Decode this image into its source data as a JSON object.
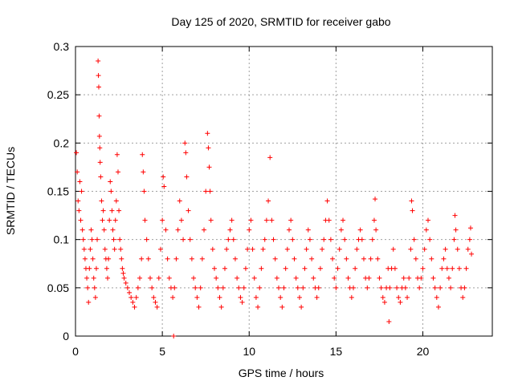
{
  "chart_data": {
    "type": "scatter",
    "title": "Day 125 of 2020, SRMTID for receiver gabo",
    "xlabel": "GPS time / hours",
    "ylabel": "SRMTID / TECUs",
    "xlim": [
      0,
      24
    ],
    "ylim": [
      0,
      0.3
    ],
    "x_ticks": [
      0,
      5,
      10,
      15,
      20
    ],
    "x_tick_labels": [
      "0",
      "5",
      "10",
      "15",
      "20"
    ],
    "y_ticks": [
      0,
      0.05,
      0.1,
      0.15,
      0.2,
      0.25,
      0.3
    ],
    "y_tick_labels": [
      "0",
      "0.05",
      "0.1",
      "0.15",
      "0.2",
      "0.25",
      "0.3"
    ],
    "grid": true,
    "marker": "plus",
    "color": "#ff0000",
    "series": [
      {
        "name": "SRMTID",
        "points": [
          [
            0.05,
            0.19
          ],
          [
            0.1,
            0.17
          ],
          [
            0.15,
            0.14
          ],
          [
            0.2,
            0.13
          ],
          [
            0.25,
            0.16
          ],
          [
            0.3,
            0.12
          ],
          [
            0.35,
            0.15
          ],
          [
            0.4,
            0.11
          ],
          [
            0.45,
            0.1
          ],
          [
            0.5,
            0.09
          ],
          [
            0.55,
            0.08
          ],
          [
            0.6,
            0.07
          ],
          [
            0.65,
            0.06
          ],
          [
            0.7,
            0.05
          ],
          [
            0.75,
            0.035
          ],
          [
            0.8,
            0.07
          ],
          [
            0.85,
            0.09
          ],
          [
            0.9,
            0.11
          ],
          [
            0.95,
            0.1
          ],
          [
            1.0,
            0.08
          ],
          [
            1.05,
            0.06
          ],
          [
            1.1,
            0.05
          ],
          [
            1.15,
            0.04
          ],
          [
            1.2,
            0.07
          ],
          [
            1.25,
            0.1
          ],
          [
            1.3,
            0.285
          ],
          [
            1.32,
            0.27
          ],
          [
            1.34,
            0.258
          ],
          [
            1.36,
            0.228
          ],
          [
            1.38,
            0.207
          ],
          [
            1.4,
            0.195
          ],
          [
            1.42,
            0.18
          ],
          [
            1.45,
            0.165
          ],
          [
            1.5,
            0.14
          ],
          [
            1.55,
            0.12
          ],
          [
            1.6,
            0.13
          ],
          [
            1.65,
            0.11
          ],
          [
            1.7,
            0.09
          ],
          [
            1.75,
            0.08
          ],
          [
            1.8,
            0.07
          ],
          [
            1.85,
            0.06
          ],
          [
            1.9,
            0.08
          ],
          [
            1.95,
            0.12
          ],
          [
            2.0,
            0.16
          ],
          [
            2.05,
            0.15
          ],
          [
            2.1,
            0.13
          ],
          [
            2.15,
            0.11
          ],
          [
            2.2,
            0.1
          ],
          [
            2.25,
            0.09
          ],
          [
            2.3,
            0.12
          ],
          [
            2.35,
            0.14
          ],
          [
            2.4,
            0.188
          ],
          [
            2.45,
            0.17
          ],
          [
            2.5,
            0.13
          ],
          [
            2.55,
            0.1
          ],
          [
            2.6,
            0.09
          ],
          [
            2.65,
            0.08
          ],
          [
            2.7,
            0.07
          ],
          [
            2.75,
            0.065
          ],
          [
            2.8,
            0.06
          ],
          [
            2.9,
            0.055
          ],
          [
            3.0,
            0.05
          ],
          [
            3.1,
            0.045
          ],
          [
            3.2,
            0.04
          ],
          [
            3.3,
            0.035
          ],
          [
            3.4,
            0.03
          ],
          [
            3.5,
            0.04
          ],
          [
            3.6,
            0.05
          ],
          [
            3.7,
            0.06
          ],
          [
            3.8,
            0.08
          ],
          [
            3.85,
            0.188
          ],
          [
            3.9,
            0.17
          ],
          [
            3.95,
            0.15
          ],
          [
            4.0,
            0.12
          ],
          [
            4.1,
            0.1
          ],
          [
            4.2,
            0.08
          ],
          [
            4.3,
            0.06
          ],
          [
            4.4,
            0.05
          ],
          [
            4.5,
            0.04
          ],
          [
            4.6,
            0.035
          ],
          [
            4.7,
            0.03
          ],
          [
            4.8,
            0.06
          ],
          [
            4.9,
            0.09
          ],
          [
            5.0,
            0.12
          ],
          [
            5.05,
            0.165
          ],
          [
            5.1,
            0.155
          ],
          [
            5.2,
            0.11
          ],
          [
            5.3,
            0.08
          ],
          [
            5.4,
            0.06
          ],
          [
            5.5,
            0.05
          ],
          [
            5.6,
            0.04
          ],
          [
            5.65,
            0.0
          ],
          [
            5.7,
            0.05
          ],
          [
            5.8,
            0.08
          ],
          [
            5.9,
            0.11
          ],
          [
            6.0,
            0.14
          ],
          [
            6.1,
            0.12
          ],
          [
            6.2,
            0.1
          ],
          [
            6.3,
            0.2
          ],
          [
            6.35,
            0.19
          ],
          [
            6.4,
            0.165
          ],
          [
            6.5,
            0.13
          ],
          [
            6.6,
            0.1
          ],
          [
            6.7,
            0.08
          ],
          [
            6.8,
            0.06
          ],
          [
            6.9,
            0.05
          ],
          [
            7.0,
            0.04
          ],
          [
            7.1,
            0.03
          ],
          [
            7.2,
            0.05
          ],
          [
            7.3,
            0.08
          ],
          [
            7.4,
            0.11
          ],
          [
            7.5,
            0.15
          ],
          [
            7.6,
            0.21
          ],
          [
            7.65,
            0.195
          ],
          [
            7.7,
            0.175
          ],
          [
            7.75,
            0.15
          ],
          [
            7.8,
            0.12
          ],
          [
            7.9,
            0.09
          ],
          [
            8.0,
            0.07
          ],
          [
            8.1,
            0.06
          ],
          [
            8.2,
            0.05
          ],
          [
            8.3,
            0.04
          ],
          [
            8.4,
            0.03
          ],
          [
            8.5,
            0.05
          ],
          [
            8.6,
            0.07
          ],
          [
            8.7,
            0.09
          ],
          [
            8.8,
            0.1
          ],
          [
            8.9,
            0.11
          ],
          [
            9.0,
            0.12
          ],
          [
            9.1,
            0.1
          ],
          [
            9.2,
            0.08
          ],
          [
            9.3,
            0.06
          ],
          [
            9.4,
            0.05
          ],
          [
            9.5,
            0.04
          ],
          [
            9.6,
            0.035
          ],
          [
            9.7,
            0.05
          ],
          [
            9.8,
            0.07
          ],
          [
            9.9,
            0.09
          ],
          [
            10.0,
            0.11
          ],
          [
            10.1,
            0.12
          ],
          [
            10.2,
            0.09
          ],
          [
            10.3,
            0.06
          ],
          [
            10.4,
            0.04
          ],
          [
            10.5,
            0.03
          ],
          [
            10.6,
            0.05
          ],
          [
            10.7,
            0.07
          ],
          [
            10.8,
            0.09
          ],
          [
            10.9,
            0.1
          ],
          [
            11.0,
            0.12
          ],
          [
            11.1,
            0.14
          ],
          [
            11.2,
            0.185
          ],
          [
            11.3,
            0.12
          ],
          [
            11.4,
            0.1
          ],
          [
            11.5,
            0.08
          ],
          [
            11.6,
            0.06
          ],
          [
            11.7,
            0.05
          ],
          [
            11.8,
            0.04
          ],
          [
            11.9,
            0.03
          ],
          [
            12.0,
            0.05
          ],
          [
            12.1,
            0.07
          ],
          [
            12.2,
            0.09
          ],
          [
            12.3,
            0.11
          ],
          [
            12.4,
            0.12
          ],
          [
            12.5,
            0.1
          ],
          [
            12.6,
            0.08
          ],
          [
            12.7,
            0.06
          ],
          [
            12.8,
            0.05
          ],
          [
            12.9,
            0.04
          ],
          [
            13.0,
            0.03
          ],
          [
            13.1,
            0.05
          ],
          [
            13.2,
            0.07
          ],
          [
            13.3,
            0.09
          ],
          [
            13.4,
            0.11
          ],
          [
            13.5,
            0.1
          ],
          [
            13.6,
            0.08
          ],
          [
            13.7,
            0.06
          ],
          [
            13.8,
            0.05
          ],
          [
            13.9,
            0.04
          ],
          [
            14.0,
            0.05
          ],
          [
            14.1,
            0.07
          ],
          [
            14.2,
            0.09
          ],
          [
            14.3,
            0.1
          ],
          [
            14.4,
            0.12
          ],
          [
            14.5,
            0.14
          ],
          [
            14.6,
            0.12
          ],
          [
            14.7,
            0.1
          ],
          [
            14.8,
            0.08
          ],
          [
            14.9,
            0.06
          ],
          [
            15.0,
            0.05
          ],
          [
            15.1,
            0.07
          ],
          [
            15.2,
            0.09
          ],
          [
            15.3,
            0.11
          ],
          [
            15.4,
            0.12
          ],
          [
            15.5,
            0.1
          ],
          [
            15.6,
            0.08
          ],
          [
            15.7,
            0.06
          ],
          [
            15.8,
            0.05
          ],
          [
            15.9,
            0.04
          ],
          [
            16.0,
            0.05
          ],
          [
            16.1,
            0.07
          ],
          [
            16.2,
            0.09
          ],
          [
            16.3,
            0.1
          ],
          [
            16.4,
            0.11
          ],
          [
            16.5,
            0.1
          ],
          [
            16.6,
            0.08
          ],
          [
            16.7,
            0.06
          ],
          [
            16.8,
            0.05
          ],
          [
            16.9,
            0.06
          ],
          [
            17.0,
            0.08
          ],
          [
            17.1,
            0.1
          ],
          [
            17.2,
            0.12
          ],
          [
            17.25,
            0.142
          ],
          [
            17.3,
            0.11
          ],
          [
            17.4,
            0.08
          ],
          [
            17.5,
            0.06
          ],
          [
            17.6,
            0.05
          ],
          [
            17.7,
            0.04
          ],
          [
            17.8,
            0.035
          ],
          [
            17.9,
            0.05
          ],
          [
            18.0,
            0.07
          ],
          [
            18.05,
            0.015
          ],
          [
            18.1,
            0.05
          ],
          [
            18.2,
            0.07
          ],
          [
            18.3,
            0.09
          ],
          [
            18.4,
            0.07
          ],
          [
            18.5,
            0.05
          ],
          [
            18.6,
            0.04
          ],
          [
            18.7,
            0.035
          ],
          [
            18.8,
            0.05
          ],
          [
            18.9,
            0.06
          ],
          [
            19.0,
            0.05
          ],
          [
            19.1,
            0.04
          ],
          [
            19.2,
            0.06
          ],
          [
            19.3,
            0.09
          ],
          [
            19.35,
            0.14
          ],
          [
            19.4,
            0.13
          ],
          [
            19.5,
            0.1
          ],
          [
            19.6,
            0.08
          ],
          [
            19.7,
            0.06
          ],
          [
            19.8,
            0.05
          ],
          [
            19.9,
            0.06
          ],
          [
            20.0,
            0.07
          ],
          [
            20.1,
            0.09
          ],
          [
            20.2,
            0.11
          ],
          [
            20.3,
            0.12
          ],
          [
            20.4,
            0.1
          ],
          [
            20.5,
            0.08
          ],
          [
            20.6,
            0.06
          ],
          [
            20.7,
            0.05
          ],
          [
            20.8,
            0.04
          ],
          [
            20.9,
            0.03
          ],
          [
            21.0,
            0.05
          ],
          [
            21.1,
            0.07
          ],
          [
            21.2,
            0.08
          ],
          [
            21.3,
            0.09
          ],
          [
            21.4,
            0.07
          ],
          [
            21.5,
            0.06
          ],
          [
            21.6,
            0.05
          ],
          [
            21.7,
            0.07
          ],
          [
            21.8,
            0.1
          ],
          [
            21.85,
            0.125
          ],
          [
            21.9,
            0.11
          ],
          [
            22.0,
            0.09
          ],
          [
            22.1,
            0.07
          ],
          [
            22.2,
            0.05
          ],
          [
            22.3,
            0.04
          ],
          [
            22.4,
            0.05
          ],
          [
            22.5,
            0.07
          ],
          [
            22.6,
            0.09
          ],
          [
            22.7,
            0.1
          ],
          [
            22.75,
            0.112
          ],
          [
            22.8,
            0.085
          ]
        ]
      }
    ]
  }
}
